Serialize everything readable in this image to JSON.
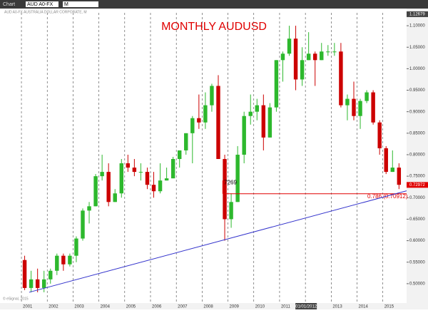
{
  "toolbar": {
    "window": "Chart",
    "symbol": "AUD A0-FX",
    "interval": "M"
  },
  "chart_data": {
    "type": "candlestick",
    "title": "MONTHLY AUDUSD",
    "header": "AUD A0-FX AUSTRALIA DOLLAR CORPORATE, M",
    "footer": "© eSignal, 2015",
    "up_color": "#2db82d",
    "down_color": "#cc0000",
    "grid": true,
    "xlim": [
      2000.17,
      2015.92
    ],
    "ylim": [
      0.455,
      1.13
    ],
    "xticks": [
      2001,
      2002,
      2003,
      2004,
      2005,
      2006,
      2007,
      2008,
      2009,
      2010,
      2011,
      {
        "value": 2012,
        "label": "01/01/2012"
      },
      2013,
      2014,
      2015
    ],
    "yticks": [
      {
        "value": 0.5,
        "label": "0.50000"
      },
      {
        "value": 0.55,
        "label": "0.55000"
      },
      {
        "value": 0.6,
        "label": "0.60000"
      },
      {
        "value": 0.65,
        "label": "0.65000"
      },
      {
        "value": 0.7,
        "label": "0.70000"
      },
      {
        "value": 0.75,
        "label": "0.75000"
      },
      {
        "value": 0.8,
        "label": "0.80000"
      },
      {
        "value": 0.85,
        "label": "0.85000"
      },
      {
        "value": 0.9,
        "label": "0.90000"
      },
      {
        "value": 0.95,
        "label": "0.95000"
      },
      {
        "value": 1.0,
        "label": "1.00000"
      },
      {
        "value": 1.05,
        "label": "1.05000"
      },
      {
        "value": 1.1,
        "label": "1.10000"
      }
    ],
    "x": [
      2001,
      2001.25,
      2001.5,
      2001.75,
      2002,
      2002.25,
      2002.5,
      2002.75,
      2003,
      2003.25,
      2003.5,
      2003.75,
      2004,
      2004.25,
      2004.5,
      2004.75,
      2005,
      2005.25,
      2005.5,
      2005.75,
      2006,
      2006.25,
      2006.5,
      2006.75,
      2007,
      2007.25,
      2007.5,
      2007.75,
      2008,
      2008.25,
      2008.5,
      2008.75,
      2009,
      2009.25,
      2009.5,
      2009.75,
      2010,
      2010.25,
      2010.5,
      2010.75,
      2011,
      2011.25,
      2011.5,
      2011.75,
      2012,
      2012.25,
      2012.5,
      2012.75,
      2013,
      2013.25,
      2013.5,
      2013.75,
      2014,
      2014.25,
      2014.5,
      2014.75,
      2015,
      2015.25,
      2015.5
    ],
    "open": [
      0.555,
      0.49,
      0.51,
      0.49,
      0.51,
      0.53,
      0.565,
      0.545,
      0.565,
      0.605,
      0.67,
      0.68,
      0.75,
      0.76,
      0.69,
      0.71,
      0.78,
      0.77,
      0.76,
      0.76,
      0.73,
      0.715,
      0.74,
      0.745,
      0.79,
      0.81,
      0.85,
      0.885,
      0.875,
      0.915,
      0.96,
      0.79,
      0.65,
      0.69,
      0.8,
      0.89,
      0.9,
      0.915,
      0.84,
      0.91,
      1.02,
      1.035,
      1.07,
      0.975,
      1.02,
      1.035,
      1.02,
      1.04,
      1.04,
      1.04,
      0.915,
      0.93,
      0.89,
      0.925,
      0.945,
      0.875,
      0.815,
      0.76,
      0.77
    ],
    "high": [
      0.565,
      0.53,
      0.535,
      0.53,
      0.535,
      0.57,
      0.57,
      0.57,
      0.61,
      0.675,
      0.69,
      0.755,
      0.8,
      0.78,
      0.72,
      0.79,
      0.8,
      0.79,
      0.78,
      0.77,
      0.76,
      0.78,
      0.77,
      0.795,
      0.81,
      0.85,
      0.89,
      0.94,
      0.945,
      0.965,
      0.985,
      0.8,
      0.71,
      0.82,
      0.9,
      0.94,
      0.93,
      0.94,
      0.92,
      1.02,
      1.04,
      1.1,
      1.1,
      1.05,
      1.085,
      1.04,
      1.06,
      1.055,
      1.06,
      1.06,
      0.94,
      0.97,
      0.93,
      0.95,
      0.95,
      0.88,
      0.82,
      0.81,
      0.78
    ],
    "low": [
      0.485,
      0.48,
      0.48,
      0.48,
      0.5,
      0.52,
      0.53,
      0.54,
      0.55,
      0.6,
      0.64,
      0.68,
      0.74,
      0.68,
      0.69,
      0.7,
      0.76,
      0.75,
      0.74,
      0.72,
      0.7,
      0.71,
      0.74,
      0.745,
      0.77,
      0.8,
      0.78,
      0.86,
      0.86,
      0.9,
      0.79,
      0.6,
      0.63,
      0.69,
      0.78,
      0.87,
      0.88,
      0.81,
      0.84,
      0.9,
      0.97,
      1.03,
      0.95,
      0.96,
      1.02,
      0.96,
      1.02,
      1.03,
      1.03,
      0.91,
      0.88,
      0.88,
      0.86,
      0.92,
      0.87,
      0.8,
      0.755,
      0.76,
      0.72
    ],
    "close": [
      0.49,
      0.51,
      0.49,
      0.51,
      0.53,
      0.565,
      0.545,
      0.565,
      0.605,
      0.67,
      0.68,
      0.75,
      0.76,
      0.69,
      0.71,
      0.78,
      0.77,
      0.76,
      0.76,
      0.73,
      0.715,
      0.74,
      0.745,
      0.79,
      0.81,
      0.85,
      0.885,
      0.875,
      0.915,
      0.96,
      0.79,
      0.65,
      0.69,
      0.8,
      0.89,
      0.9,
      0.915,
      0.84,
      0.91,
      1.02,
      1.035,
      1.07,
      0.975,
      1.02,
      1.035,
      1.02,
      1.04,
      1.04,
      1.04,
      0.915,
      0.93,
      0.89,
      0.925,
      0.945,
      0.875,
      0.815,
      0.76,
      0.77,
      0.73
    ],
    "level": {
      "value": 0.70912,
      "label": "0.786 (0.70912)",
      "color": "#e00000"
    },
    "swing_label": "7269",
    "trendline": {
      "x": [
        2001.3,
        2015.92
      ],
      "y": [
        0.48,
        0.716
      ],
      "color": "#3333cc"
    },
    "last_price": {
      "value": 0.72972,
      "label": "0.72972"
    },
    "high_price": {
      "value": 1.12679,
      "label": "1.12679"
    }
  }
}
